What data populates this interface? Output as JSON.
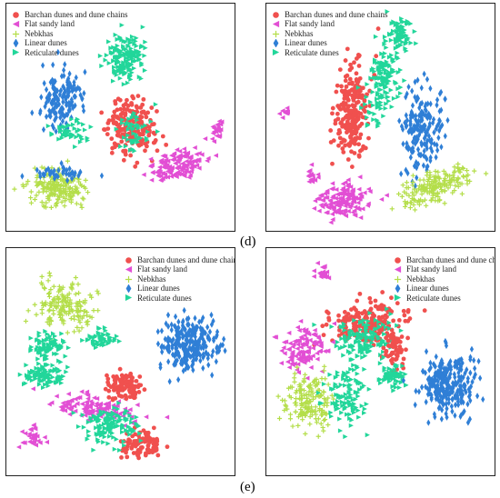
{
  "chart_data": [
    {
      "type": "scatter",
      "panel_label": "",
      "legend_position": "top-left",
      "legend": [
        "Barchan dunes and dune chains",
        "Flat sandy land",
        "Nebkhas",
        "Linear dunes",
        "Reticulate dunes"
      ]
    },
    {
      "type": "scatter",
      "panel_label": "(d)",
      "legend_position": "top-left",
      "legend": [
        "Barchan dunes and dune chains",
        "Flat sandy land",
        "Nebkhas",
        "Linear dunes",
        "Reticulate dunes"
      ]
    },
    {
      "type": "scatter",
      "panel_label": "",
      "legend_position": "top-right",
      "legend": [
        "Barchan dunes and dune chains",
        "Flat sandy land",
        "Nebkhas",
        "Linear dunes",
        "Reticulate dunes"
      ]
    },
    {
      "type": "scatter",
      "panel_label": "(e)",
      "legend_position": "top-right",
      "legend": [
        "Barchan dunes and dune chains",
        "Flat sandy land",
        "Nebkhas",
        "Linear dunes",
        "Reticulate dunes"
      ]
    }
  ],
  "classes": [
    {
      "name": "barchan",
      "color": "#f0504e",
      "marker": "circle"
    },
    {
      "name": "flat",
      "color": "#e24fd4",
      "marker": "tri-left"
    },
    {
      "name": "nebkhas",
      "color": "#b4de4a",
      "marker": "plus"
    },
    {
      "name": "linear",
      "color": "#2f7fd6",
      "marker": "diamond"
    },
    {
      "name": "reticulate",
      "color": "#22d69a",
      "marker": "tri-right"
    }
  ]
}
